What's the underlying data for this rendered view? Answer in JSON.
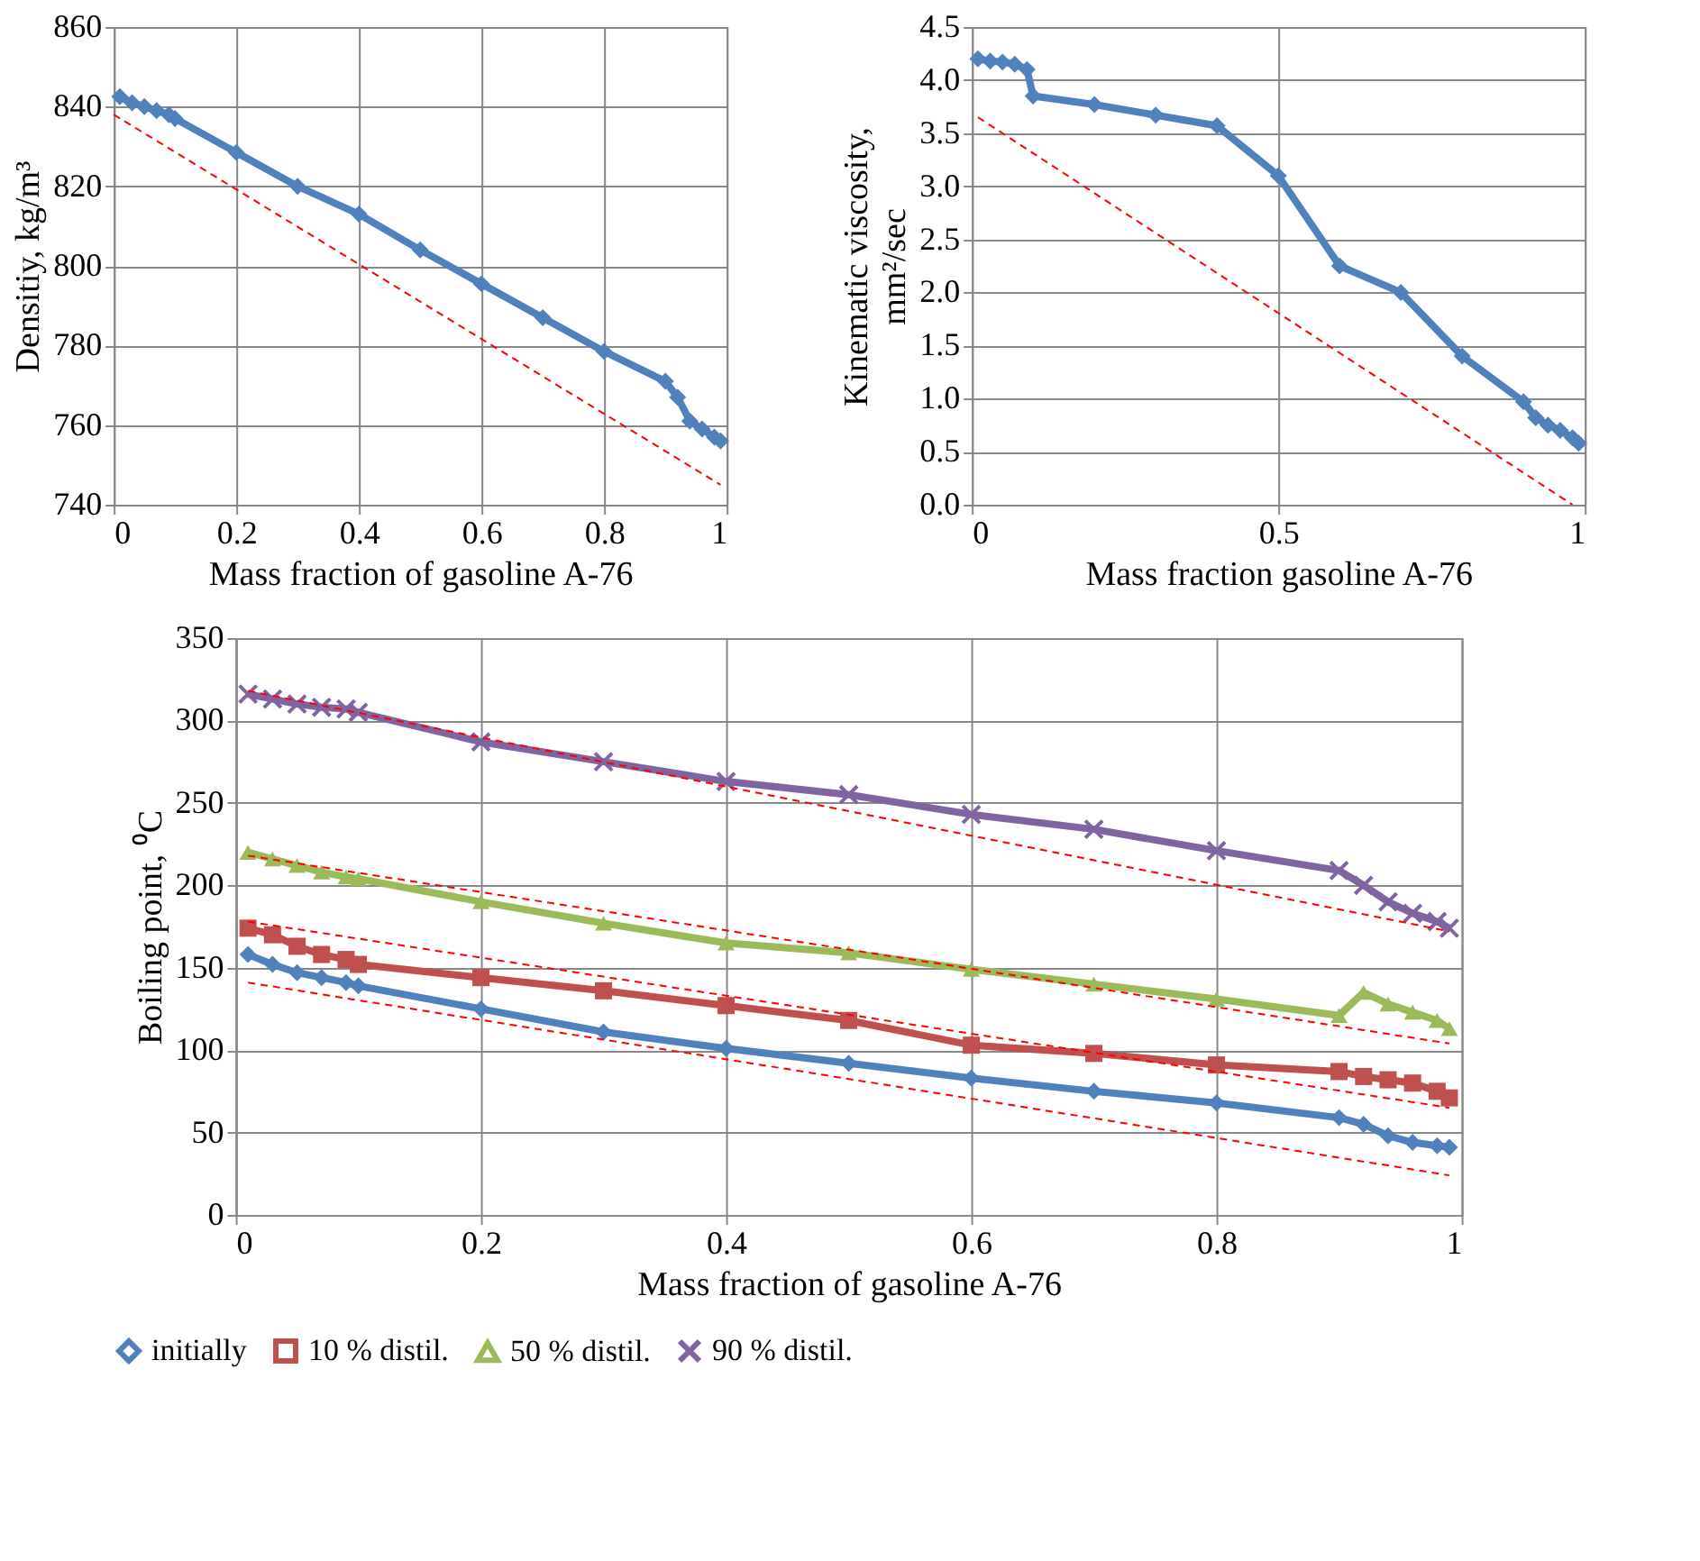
{
  "chart_data": [
    {
      "type": "line",
      "ylabel": "Densitiy, kg/m³",
      "xlabel": "Mass fraction of gasoline A-76",
      "xlim": [
        0,
        1
      ],
      "ylim": [
        740,
        860
      ],
      "xticks": [
        0,
        0.2,
        0.4,
        0.6,
        0.8,
        1
      ],
      "yticks": [
        740,
        760,
        780,
        800,
        820,
        840,
        860
      ],
      "grid": true,
      "legend": false,
      "marker": "diamond",
      "x": [
        0.01,
        0.03,
        0.05,
        0.07,
        0.09,
        0.1,
        0.2,
        0.3,
        0.4,
        0.5,
        0.6,
        0.7,
        0.8,
        0.9,
        0.92,
        0.94,
        0.96,
        0.98,
        0.99
      ],
      "series": [
        {
          "color": "#4f81bd",
          "values": [
            842.5,
            841,
            840,
            839,
            838,
            837,
            828.5,
            820,
            813,
            804,
            795.5,
            787,
            778.5,
            771,
            767,
            761,
            759,
            757,
            756
          ]
        },
        {
          "type": "line",
          "color": "#ff0000",
          "line_style": "dashed",
          "marker": "none",
          "x": [
            0.0,
            0.99
          ],
          "values": [
            838,
            745
          ]
        }
      ]
    },
    {
      "type": "line",
      "ylabel": "Kinematic viscosity,\nmm²/sec",
      "xlabel": "Mass fraction gasoline A-76",
      "xlim": [
        0,
        1
      ],
      "ylim": [
        0,
        4.5
      ],
      "xticks": [
        0,
        0.5,
        1
      ],
      "yticks": [
        {
          "value": 0,
          "label": "0.0"
        },
        0.5,
        {
          "value": 1,
          "label": "1.0"
        },
        1.5,
        {
          "value": 2,
          "label": "2.0"
        },
        2.5,
        {
          "value": 3,
          "label": "3.0"
        },
        3.5,
        {
          "value": 4,
          "label": "4.0"
        },
        4.5
      ],
      "grid": true,
      "legend": false,
      "marker": "diamond",
      "x": [
        0.01,
        0.03,
        0.05,
        0.07,
        0.09,
        0.1,
        0.2,
        0.3,
        0.4,
        0.5,
        0.6,
        0.7,
        0.8,
        0.9,
        0.92,
        0.94,
        0.96,
        0.98,
        0.99
      ],
      "series": [
        {
          "color": "#4f81bd",
          "values": [
            4.2,
            4.18,
            4.17,
            4.15,
            4.1,
            3.85,
            3.77,
            3.67,
            3.57,
            3.1,
            2.25,
            2.0,
            1.4,
            0.97,
            0.82,
            0.75,
            0.7,
            0.63,
            0.58
          ]
        },
        {
          "type": "line",
          "color": "#ff0000",
          "line_style": "dashed",
          "marker": "none",
          "x": [
            0.01,
            0.98
          ],
          "values": [
            3.65,
            0.0
          ]
        }
      ]
    },
    {
      "type": "line",
      "ylabel": "Boiling point, ⁰C",
      "xlabel": "Mass fraction of gasoline A-76",
      "xlim": [
        0,
        1
      ],
      "ylim": [
        0,
        350
      ],
      "xticks": [
        0,
        0.2,
        0.4,
        0.6,
        0.8,
        1
      ],
      "yticks": [
        0,
        50,
        100,
        150,
        200,
        250,
        300,
        350
      ],
      "grid": true,
      "legend": "bottom",
      "x": [
        0.01,
        0.03,
        0.05,
        0.07,
        0.09,
        0.1,
        0.2,
        0.3,
        0.4,
        0.5,
        0.6,
        0.7,
        0.8,
        0.9,
        0.92,
        0.94,
        0.96,
        0.98,
        0.99
      ],
      "series": [
        {
          "name": "initially",
          "color": "#4f81bd",
          "marker": "diamond",
          "values": [
            158,
            152,
            147,
            144,
            141,
            139,
            125,
            111,
            101,
            92,
            83,
            75,
            68,
            59,
            55,
            48,
            44,
            42,
            41
          ]
        },
        {
          "name": "10 % distil.",
          "color": "#c0504d",
          "marker": "square",
          "values": [
            174,
            170,
            163,
            158,
            155,
            152,
            144,
            136,
            127,
            118,
            103,
            98,
            91,
            87,
            84,
            82,
            80,
            75,
            71
          ]
        },
        {
          "name": "50 % distil.",
          "color": "#9bbb59",
          "marker": "triangle",
          "values": [
            220,
            216,
            212,
            208,
            205,
            204,
            190,
            177,
            165,
            159,
            149,
            140,
            131,
            121,
            135,
            128,
            123,
            118,
            113
          ]
        },
        {
          "name": "90 % distil.",
          "color": "#8064a2",
          "marker": "cross",
          "values": [
            316,
            313,
            310,
            308,
            307,
            305,
            287,
            275,
            263,
            255,
            243,
            234,
            221,
            209,
            200,
            190,
            183,
            178,
            174
          ]
        },
        {
          "type": "line",
          "color": "#ff0000",
          "line_style": "dashed",
          "marker": "none",
          "x": [
            0.01,
            0.99
          ],
          "values": [
            141,
            24
          ]
        },
        {
          "type": "line",
          "color": "#ff0000",
          "line_style": "dashed",
          "marker": "none",
          "x": [
            0.01,
            0.99
          ],
          "values": [
            178,
            65
          ]
        },
        {
          "type": "line",
          "color": "#ff0000",
          "line_style": "dashed",
          "marker": "none",
          "x": [
            0.01,
            0.99
          ],
          "values": [
            218,
            104
          ]
        },
        {
          "type": "line",
          "color": "#ff0000",
          "line_style": "dashed",
          "marker": "none",
          "x": [
            0.01,
            0.99
          ],
          "values": [
            318,
            172
          ]
        }
      ]
    }
  ]
}
